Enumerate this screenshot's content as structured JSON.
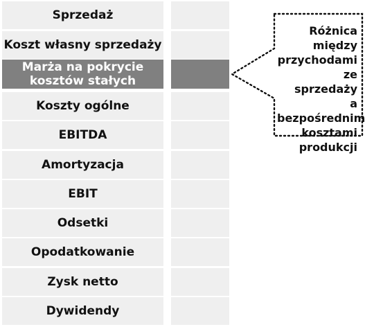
{
  "rows": [
    {
      "label": "Sprzedaż"
    },
    {
      "label": "Koszt własny sprzedaży"
    },
    {
      "label": "Marża na pokrycie\nkosztów stałych",
      "highlight": true
    },
    {
      "label": "Koszty ogólne"
    },
    {
      "label": "EBITDA"
    },
    {
      "label": "Amortyzacja"
    },
    {
      "label": "EBIT"
    },
    {
      "label": "Odsetki"
    },
    {
      "label": "Opodatkowanie"
    },
    {
      "label": "Zysk netto"
    },
    {
      "label": "Dywidendy"
    }
  ],
  "callout": {
    "text": "Różnica\nmiędzy\nprzychodami\nze sprzedaży\na bezpośrednimi\nkosztami\nprodukcji"
  },
  "colors": {
    "cell_background": "#efefef",
    "highlight_background": "#808080",
    "highlight_text": "#ffffff",
    "text": "#111111"
  }
}
